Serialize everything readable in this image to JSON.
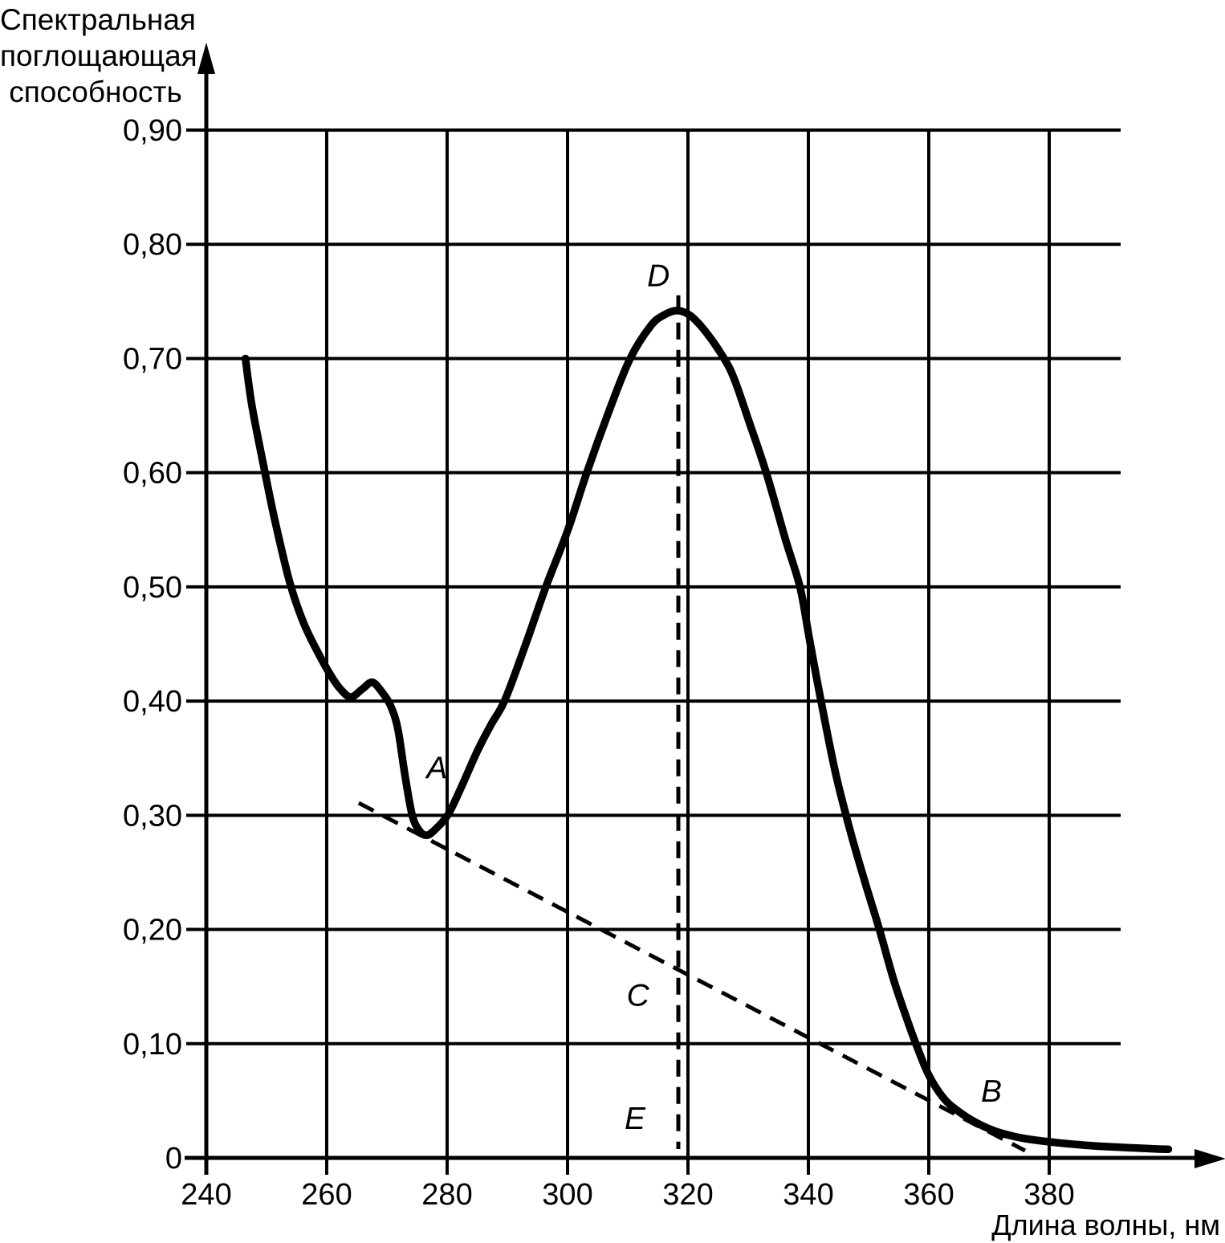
{
  "figure": {
    "background": "#ffffff",
    "ink": "#000000"
  },
  "y_axis": {
    "title_lines": [
      "Спектральная",
      "поглощающая",
      "способность"
    ],
    "tick_labels": [
      "0",
      "0,10",
      "0,20",
      "0,30",
      "0,40",
      "0,50",
      "0,60",
      "0,70",
      "0,80",
      "0,90"
    ],
    "tick_values": [
      0,
      0.1,
      0.2,
      0.3,
      0.4,
      0.5,
      0.6,
      0.7,
      0.8,
      0.9
    ]
  },
  "x_axis": {
    "title": "Длина волны, нм",
    "tick_labels": [
      "240",
      "260",
      "280",
      "300",
      "320",
      "340",
      "360",
      "380"
    ],
    "tick_values": [
      240,
      260,
      280,
      300,
      320,
      340,
      360,
      380
    ]
  },
  "chart_data": {
    "type": "line",
    "title": "",
    "xlabel": "Длина волны, нм",
    "ylabel": "Спектральная поглощающая способность",
    "xlim": [
      240,
      402
    ],
    "ylim": [
      0,
      0.9
    ],
    "grid": true,
    "legend": false,
    "series": [
      {
        "name": "absorption-spectrum",
        "style": "solid",
        "points": [
          [
            246.5,
            0.7
          ],
          [
            247.6,
            0.658
          ],
          [
            249.6,
            0.604
          ],
          [
            251.4,
            0.558
          ],
          [
            253.9,
            0.503
          ],
          [
            256.2,
            0.468
          ],
          [
            258.6,
            0.442
          ],
          [
            260.5,
            0.424
          ],
          [
            262.2,
            0.411
          ],
          [
            264.0,
            0.4035
          ],
          [
            266.0,
            0.411
          ],
          [
            267.6,
            0.4165
          ],
          [
            269.3,
            0.407
          ],
          [
            270.6,
            0.396
          ],
          [
            271.8,
            0.376
          ],
          [
            273.0,
            0.335
          ],
          [
            274.2,
            0.3
          ],
          [
            275.4,
            0.2865
          ],
          [
            276.6,
            0.2825
          ],
          [
            278.0,
            0.2875
          ],
          [
            280.2,
            0.301
          ],
          [
            282.5,
            0.3265
          ],
          [
            285.0,
            0.356
          ],
          [
            287.3,
            0.3795
          ],
          [
            289.6,
            0.401
          ],
          [
            293.0,
            0.449
          ],
          [
            296.4,
            0.5
          ],
          [
            300.0,
            0.549
          ],
          [
            303.2,
            0.6
          ],
          [
            307.0,
            0.6555
          ],
          [
            310.4,
            0.7
          ],
          [
            313.8,
            0.7285
          ],
          [
            316.0,
            0.738
          ],
          [
            318.2,
            0.742
          ],
          [
            320.4,
            0.7375
          ],
          [
            323.0,
            0.723
          ],
          [
            326.0,
            0.7
          ],
          [
            327.7,
            0.682
          ],
          [
            330.0,
            0.647
          ],
          [
            333.0,
            0.6
          ],
          [
            336.2,
            0.5415
          ],
          [
            338.6,
            0.5
          ],
          [
            340.1,
            0.4565
          ],
          [
            342.1,
            0.4
          ],
          [
            344.6,
            0.335
          ],
          [
            347.2,
            0.2815
          ],
          [
            349.6,
            0.238
          ],
          [
            351.8,
            0.2
          ],
          [
            354.1,
            0.157
          ],
          [
            356.1,
            0.1255
          ],
          [
            358.0,
            0.098
          ],
          [
            360.0,
            0.0725
          ],
          [
            362.5,
            0.052
          ],
          [
            365.0,
            0.0405
          ],
          [
            368.0,
            0.0305
          ],
          [
            371.0,
            0.0235
          ],
          [
            374.0,
            0.019
          ],
          [
            377.0,
            0.016
          ],
          [
            381.0,
            0.0135
          ],
          [
            385.0,
            0.0115
          ],
          [
            389.0,
            0.01
          ],
          [
            393.0,
            0.009
          ],
          [
            397.0,
            0.008
          ],
          [
            399.8,
            0.0075
          ]
        ]
      },
      {
        "name": "baseline-tangent",
        "style": "dashed",
        "points": [
          [
            265.3,
            0.3108
          ],
          [
            376.0,
            0.0063
          ]
        ]
      },
      {
        "name": "peak-ordinate",
        "style": "dashed",
        "points": [
          [
            318.4,
            0.7553
          ],
          [
            318.4,
            0.0077
          ]
        ]
      }
    ],
    "point_labels": [
      {
        "text": "A",
        "x": 278.3,
        "y": 0.342
      },
      {
        "text": "B",
        "x": 370.4,
        "y": 0.059
      },
      {
        "text": "C",
        "x": 311.7,
        "y": 0.143
      },
      {
        "text": "D",
        "x": 315.1,
        "y": 0.773
      },
      {
        "text": "E",
        "x": 311.2,
        "y": 0.035
      }
    ]
  }
}
